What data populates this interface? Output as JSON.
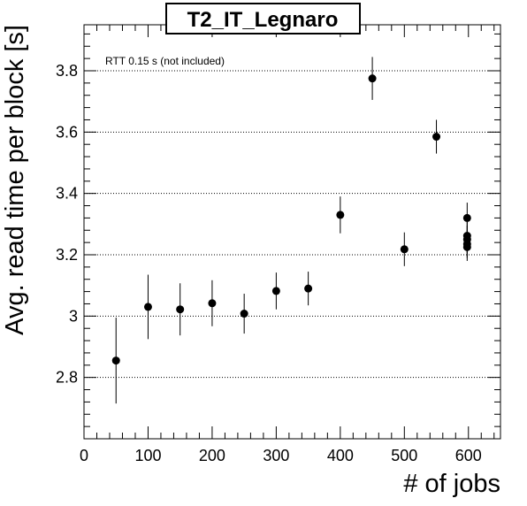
{
  "chart_data": {
    "type": "scatter",
    "title": "T2_IT_Legnaro",
    "xlabel": "# of jobs",
    "ylabel": "Avg. read time per block [s]",
    "annotation": "RTT 0.15 s (not included)",
    "xlim": [
      0,
      650
    ],
    "ylim": [
      2.6,
      3.95
    ],
    "x_ticks": [
      0,
      100,
      200,
      300,
      400,
      500,
      600
    ],
    "x_tick_labels": [
      "0",
      "100",
      "200",
      "300",
      "400",
      "500",
      "600"
    ],
    "y_ticks": [
      2.8,
      3.0,
      3.2,
      3.4,
      3.6,
      3.8
    ],
    "y_tick_labels": [
      "2.8",
      "3",
      "3.2",
      "3.4",
      "3.6",
      "3.8"
    ],
    "grid_y": true,
    "grid_x": false,
    "points": [
      {
        "x": 50,
        "y": 2.855,
        "err": 0.14
      },
      {
        "x": 100,
        "y": 3.03,
        "err": 0.105
      },
      {
        "x": 150,
        "y": 3.022,
        "err": 0.085
      },
      {
        "x": 200,
        "y": 3.042,
        "err": 0.075
      },
      {
        "x": 250,
        "y": 3.008,
        "err": 0.065
      },
      {
        "x": 300,
        "y": 3.082,
        "err": 0.06
      },
      {
        "x": 350,
        "y": 3.09,
        "err": 0.055
      },
      {
        "x": 400,
        "y": 3.33,
        "err": 0.06
      },
      {
        "x": 450,
        "y": 3.775,
        "err": 0.07
      },
      {
        "x": 500,
        "y": 3.218,
        "err": 0.055
      },
      {
        "x": 550,
        "y": 3.585,
        "err": 0.055
      },
      {
        "x": 598,
        "y": 3.32,
        "err": 0.05
      },
      {
        "x": 598,
        "y": 3.262,
        "err": 0.045
      },
      {
        "x": 598,
        "y": 3.25,
        "err": 0.045
      },
      {
        "x": 598,
        "y": 3.235,
        "err": 0.045
      },
      {
        "x": 598,
        "y": 3.225,
        "err": 0.045
      }
    ]
  }
}
